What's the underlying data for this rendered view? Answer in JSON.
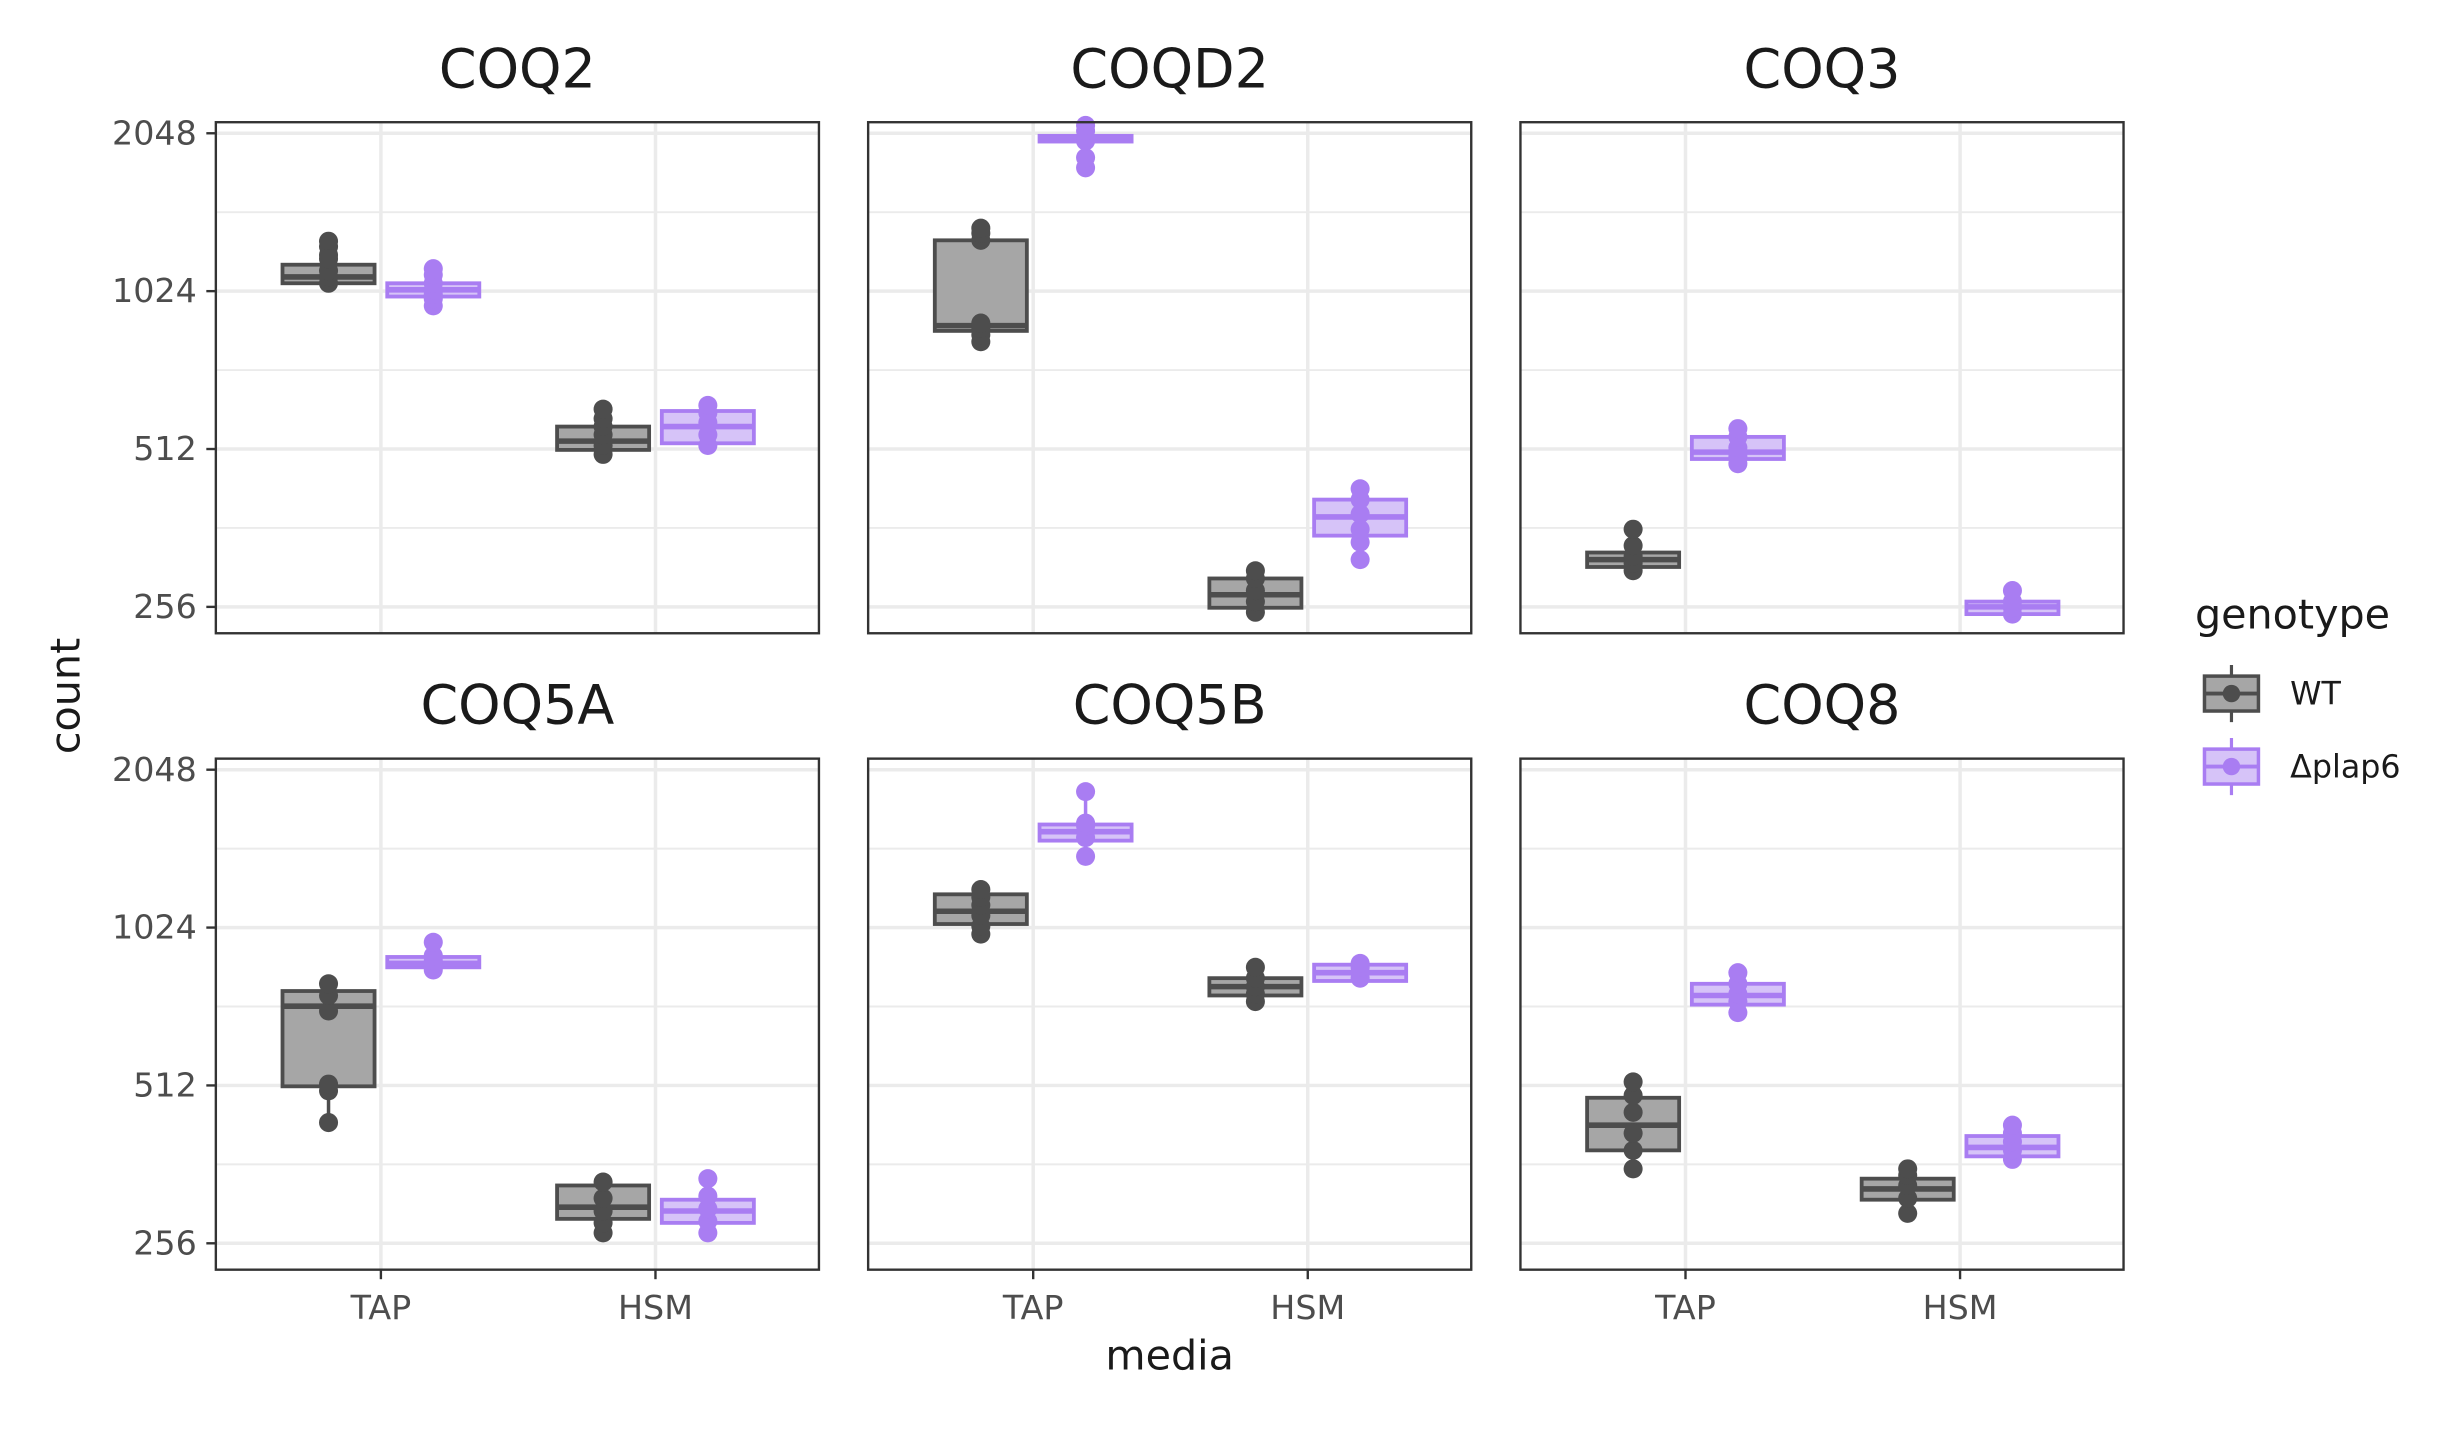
{
  "chart_data": {
    "type": "box",
    "facet_by": "gene",
    "x_categories": [
      "TAP",
      "HSM"
    ],
    "xlabel": "media",
    "ylabel": "count",
    "y_scale": "log2",
    "y_ticks": [
      256,
      512,
      1024,
      2048
    ],
    "y_tick_labels": [
      "256",
      "512",
      "1024",
      "2048"
    ],
    "ylim": [
      228,
      2150
    ],
    "grid": true,
    "legend": {
      "title": "genotype",
      "position": "right",
      "entries": [
        {
          "label": "WT",
          "color": "#4d4d4d",
          "fill": "#a6a6a6"
        },
        {
          "label": "Δplap6",
          "color": "#a97df2",
          "fill": "#d6c3f8"
        }
      ]
    },
    "facets": [
      {
        "title": "COQ2",
        "groups": [
          {
            "media": "TAP",
            "genotype": "WT",
            "q1": 1060,
            "median": 1090,
            "q3": 1150,
            "points": [
              1060,
              1090,
              1120,
              1200,
              1245,
              1275,
              1180
            ]
          },
          {
            "media": "TAP",
            "genotype": "Δplap6",
            "q1": 1000,
            "median": 1030,
            "q3": 1060,
            "points": [
              960,
              990,
              1010,
              1030,
              1060,
              1100,
              1130
            ]
          },
          {
            "media": "HSM",
            "genotype": "WT",
            "q1": 510,
            "median": 530,
            "q3": 565,
            "points": [
              500,
              520,
              545,
              565,
              585,
              610
            ]
          },
          {
            "media": "HSM",
            "genotype": "Δplap6",
            "q1": 525,
            "median": 565,
            "q3": 605,
            "points": [
              520,
              545,
              575,
              600,
              620
            ]
          }
        ]
      },
      {
        "title": "COQD2",
        "groups": [
          {
            "media": "TAP",
            "genotype": "WT",
            "q1": 860,
            "median": 880,
            "q3": 1280,
            "points": [
              820,
              845,
              870,
              890,
              1280,
              1320,
              1350
            ]
          },
          {
            "media": "TAP",
            "genotype": "Δplap6",
            "q1": 1975,
            "median": 2000,
            "q3": 2025,
            "points": [
              1760,
              1840,
              1980,
              2010,
              2070,
              2120
            ]
          },
          {
            "media": "HSM",
            "genotype": "WT",
            "q1": 255,
            "median": 270,
            "q3": 290,
            "points": [
              250,
              262,
              275,
              290,
              300
            ]
          },
          {
            "media": "HSM",
            "genotype": "Δplap6",
            "q1": 350,
            "median": 380,
            "q3": 410,
            "points": [
              315,
              340,
              360,
              385,
              410,
              430
            ]
          }
        ]
      },
      {
        "title": "COQ3",
        "groups": [
          {
            "media": "TAP",
            "genotype": "WT",
            "q1": 305,
            "median": 315,
            "q3": 325,
            "points": [
              300,
              310,
              320,
              335,
              360
            ]
          },
          {
            "media": "TAP",
            "genotype": "Δplap6",
            "q1": 490,
            "median": 505,
            "q3": 540,
            "points": [
              480,
              495,
              515,
              540,
              560
            ]
          },
          {
            "media": "HSM",
            "genotype": "Δplap6",
            "q1": 248,
            "median": 256,
            "q3": 262,
            "points": [
              248,
              255,
              262,
              275
            ]
          }
        ]
      },
      {
        "title": "COQ5A",
        "groups": [
          {
            "media": "TAP",
            "genotype": "WT",
            "q1": 510,
            "median": 725,
            "q3": 775,
            "points": [
              435,
              500,
              515,
              710,
              760,
              800
            ]
          },
          {
            "media": "TAP",
            "genotype": "Δplap6",
            "q1": 860,
            "median": 875,
            "q3": 900,
            "points": [
              850,
              870,
              885,
              905,
              960
            ]
          },
          {
            "media": "HSM",
            "genotype": "WT",
            "q1": 285,
            "median": 300,
            "q3": 330,
            "points": [
              268,
              280,
              295,
              312,
              335
            ]
          },
          {
            "media": "HSM",
            "genotype": "Δplap6",
            "q1": 280,
            "median": 295,
            "q3": 310,
            "points": [
              268,
              282,
              298,
              315,
              340
            ]
          }
        ]
      },
      {
        "title": "COQ5B",
        "groups": [
          {
            "media": "TAP",
            "genotype": "WT",
            "q1": 1040,
            "median": 1100,
            "q3": 1185,
            "points": [
              995,
              1030,
              1080,
              1130,
              1170,
              1210
            ]
          },
          {
            "media": "TAP",
            "genotype": "Δplap6",
            "q1": 1500,
            "median": 1560,
            "q3": 1610,
            "points": [
              1400,
              1520,
              1560,
              1600,
              1620,
              1860
            ]
          },
          {
            "media": "HSM",
            "genotype": "WT",
            "q1": 760,
            "median": 790,
            "q3": 820,
            "points": [
              740,
              765,
              790,
              820,
              860
            ]
          },
          {
            "media": "HSM",
            "genotype": "Δplap6",
            "q1": 810,
            "median": 840,
            "q3": 870,
            "points": [
              820,
              840,
              860,
              875
            ]
          }
        ]
      },
      {
        "title": "COQ8",
        "groups": [
          {
            "media": "TAP",
            "genotype": "WT",
            "q1": 385,
            "median": 430,
            "q3": 485,
            "points": [
              355,
              385,
              415,
              455,
              490,
              520
            ]
          },
          {
            "media": "TAP",
            "genotype": "Δplap6",
            "q1": 730,
            "median": 760,
            "q3": 800,
            "points": [
              705,
              740,
              765,
              800,
              840
            ]
          },
          {
            "media": "HSM",
            "genotype": "WT",
            "q1": 310,
            "median": 325,
            "q3": 340,
            "points": [
              292,
              312,
              330,
              345,
              355
            ]
          },
          {
            "media": "HSM",
            "genotype": "Δplap6",
            "q1": 375,
            "median": 390,
            "q3": 410,
            "points": [
              370,
              385,
              400,
              415,
              430
            ]
          }
        ]
      }
    ]
  }
}
